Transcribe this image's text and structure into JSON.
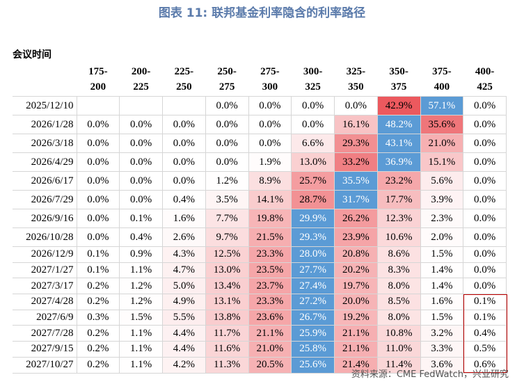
{
  "title": "图表 11: 联邦基金利率隐含的利率路径",
  "table": {
    "header": [
      "会议时间",
      "175-\n200",
      "200-\n225",
      "225-\n250",
      "250-\n275",
      "275-\n300",
      "300-\n325",
      "325-\n350",
      "350-\n375",
      "375-\n400",
      "400-\n425"
    ],
    "rows": [
      {
        "date": "2025/12/10",
        "cells": [
          null,
          null,
          null,
          "0.0%",
          "0.0%",
          "0.0%",
          "0.0%",
          "42.9%",
          "57.1%",
          "0.0%"
        ]
      },
      {
        "date": "2026/1/28",
        "cells": [
          "0.0%",
          "0.0%",
          "0.0%",
          "0.0%",
          "0.0%",
          "0.0%",
          "16.1%",
          "48.2%",
          "35.6%",
          "0.0%"
        ]
      },
      {
        "date": "2026/3/18",
        "cells": [
          "0.0%",
          "0.0%",
          "0.0%",
          "0.0%",
          "0.0%",
          "6.6%",
          "29.3%",
          "43.1%",
          "21.0%",
          "0.0%"
        ]
      },
      {
        "date": "2026/4/29",
        "cells": [
          "0.0%",
          "0.0%",
          "0.0%",
          "0.0%",
          "1.9%",
          "13.0%",
          "33.2%",
          "36.9%",
          "15.1%",
          "0.0%"
        ]
      },
      {
        "date": "2026/6/17",
        "cells": [
          "0.0%",
          "0.0%",
          "0.0%",
          "1.2%",
          "8.9%",
          "25.7%",
          "35.5%",
          "23.2%",
          "5.6%",
          "0.0%"
        ]
      },
      {
        "date": "2026/7/29",
        "cells": [
          "0.0%",
          "0.0%",
          "0.4%",
          "3.5%",
          "14.1%",
          "28.7%",
          "31.7%",
          "17.7%",
          "3.9%",
          "0.0%"
        ]
      },
      {
        "date": "2026/9/16",
        "cells": [
          "0.0%",
          "0.1%",
          "1.6%",
          "7.7%",
          "19.8%",
          "29.9%",
          "26.2%",
          "12.3%",
          "2.3%",
          "0.0%"
        ]
      },
      {
        "date": "2026/10/28",
        "cells": [
          "0.0%",
          "0.4%",
          "2.6%",
          "9.7%",
          "21.5%",
          "29.3%",
          "23.9%",
          "10.6%",
          "2.0%",
          "0.0%"
        ]
      },
      {
        "date": "2026/12/9",
        "cells": [
          "0.1%",
          "0.9%",
          "4.3%",
          "12.5%",
          "23.3%",
          "28.0%",
          "20.8%",
          "8.6%",
          "1.5%",
          "0.0%"
        ]
      },
      {
        "date": "2027/1/27",
        "cells": [
          "0.1%",
          "1.1%",
          "4.7%",
          "13.0%",
          "23.5%",
          "27.7%",
          "20.2%",
          "8.3%",
          "1.4%",
          "0.0%"
        ]
      },
      {
        "date": "2027/3/17",
        "cells": [
          "0.2%",
          "1.2%",
          "5.0%",
          "13.4%",
          "23.7%",
          "27.4%",
          "19.7%",
          "8.0%",
          "1.4%",
          "0.0%"
        ]
      },
      {
        "date": "2027/4/28",
        "cells": [
          "0.2%",
          "1.2%",
          "4.9%",
          "13.1%",
          "23.3%",
          "27.2%",
          "20.0%",
          "8.5%",
          "1.6%",
          "0.1%"
        ]
      },
      {
        "date": "2027/6/9",
        "cells": [
          "0.3%",
          "1.5%",
          "5.5%",
          "13.8%",
          "23.6%",
          "26.7%",
          "19.2%",
          "8.0%",
          "1.5%",
          "0.1%"
        ]
      },
      {
        "date": "2027/7/28",
        "cells": [
          "0.2%",
          "1.1%",
          "4.4%",
          "11.7%",
          "21.1%",
          "25.9%",
          "21.1%",
          "10.8%",
          "3.2%",
          "0.4%"
        ]
      },
      {
        "date": "2027/9/15",
        "cells": [
          "0.2%",
          "1.1%",
          "4.4%",
          "11.6%",
          "21.0%",
          "25.8%",
          "21.1%",
          "11.0%",
          "3.3%",
          "0.5%"
        ]
      },
      {
        "date": "2027/10/27",
        "cells": [
          "0.2%",
          "1.1%",
          "4.2%",
          "11.3%",
          "20.5%",
          "25.6%",
          "21.4%",
          "11.4%",
          "3.6%",
          "0.6%"
        ]
      }
    ]
  },
  "source": "资料来源：CME FedWatch，兴业研究"
}
